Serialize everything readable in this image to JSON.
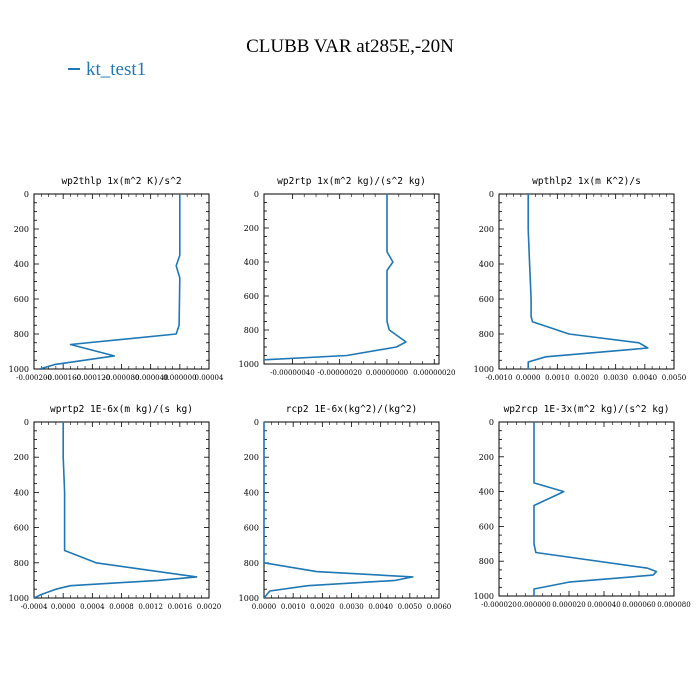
{
  "title": "CLUBB VAR at285E,-20N",
  "legend": {
    "label": "kt_test1",
    "color": "#1f77b4"
  },
  "chart_data": [
    {
      "type": "line",
      "title": "wp2thlp   1x(m^2 K)/s^2",
      "xlim": [
        -0.0002,
        4e-05
      ],
      "ylim": [
        1000,
        0
      ],
      "xticks": [
        -0.0002,
        -0.00016,
        -0.00012,
        -8e-05,
        -4e-05,
        0.0,
        4e-05
      ],
      "xtick_labels": [
        "-0.000200",
        "-0.000160",
        "-0.000120",
        "-0.000080",
        "-0.000040",
        "0.000000",
        "0.00004"
      ],
      "yticks": [
        0,
        200,
        400,
        600,
        800,
        1000
      ],
      "series": [
        {
          "color": "#1f77b4",
          "x": [
            0.0,
            0.0,
            0.0,
            -5e-06,
            0.0,
            -1e-06,
            -5e-06,
            -0.00015,
            -9e-05,
            -0.000172,
            -0.000192
          ],
          "y": [
            0,
            200,
            350,
            410,
            480,
            750,
            800,
            860,
            925,
            975,
            1000
          ]
        }
      ]
    },
    {
      "type": "line",
      "title": "wp2rtp   1x(m^2 kg)/(s^2 kg)",
      "xlim": [
        -5.2e-07,
        2.2e-07
      ],
      "ylim": [
        1000,
        0
      ],
      "xticks": [
        -4e-07,
        -2e-07,
        0.0,
        2e-07
      ],
      "xtick_labels": [
        "-0.00000040",
        "-0.00000020",
        "0.00000000",
        "0.00000020"
      ],
      "yticks": [
        0,
        200,
        400,
        600,
        800,
        1000
      ],
      "series": [
        {
          "color": "#1f77b4",
          "x": [
            0.0,
            0.0,
            0.0,
            2.5e-08,
            0.0,
            0.0,
            1e-08,
            8e-08,
            4e-08,
            -1.7e-07,
            -5.2e-07
          ],
          "y": [
            0,
            200,
            340,
            400,
            450,
            750,
            800,
            870,
            900,
            950,
            975
          ]
        }
      ]
    },
    {
      "type": "line",
      "title": "wpthlp2   1x(m K^2)/s",
      "xlim": [
        -0.001,
        0.005
      ],
      "ylim": [
        1000,
        0
      ],
      "xticks": [
        -0.001,
        0.0,
        0.001,
        0.002,
        0.003,
        0.004,
        0.005
      ],
      "xtick_labels": [
        "-0.0010",
        "0.0000",
        "0.0010",
        "0.0020",
        "0.0030",
        "0.0040",
        "0.0050"
      ],
      "yticks": [
        0,
        200,
        400,
        600,
        800,
        1000
      ],
      "series": [
        {
          "color": "#1f77b4",
          "x": [
            0.0,
            0.0,
            5e-05,
            0.0001,
            0.0001,
            0.00015,
            0.0014,
            0.0038,
            0.0041,
            0.0006,
            0.0,
            0.0
          ],
          "y": [
            0,
            200,
            400,
            600,
            700,
            730,
            800,
            850,
            880,
            930,
            960,
            1000
          ]
        }
      ]
    },
    {
      "type": "line",
      "title": "wprtp2   1E-6x(m kg)/(s kg)",
      "xlim": [
        -0.0004,
        0.002
      ],
      "ylim": [
        1000,
        0
      ],
      "xticks": [
        -0.0004,
        0.0,
        0.0004,
        0.0008,
        0.0012,
        0.0016,
        0.002
      ],
      "xtick_labels": [
        "-0.0004",
        "0.0000",
        "0.0004",
        "0.0008",
        "0.0012",
        "0.0016",
        "0.0020"
      ],
      "yticks": [
        0,
        200,
        400,
        600,
        800,
        1000
      ],
      "series": [
        {
          "color": "#1f77b4",
          "x": [
            0.0,
            0.0,
            2e-05,
            2e-05,
            2e-05,
            0.00045,
            0.00183,
            0.0013,
            0.0001,
            -0.0001,
            -0.0003,
            -0.0004
          ],
          "y": [
            0,
            200,
            400,
            600,
            730,
            800,
            880,
            900,
            930,
            950,
            980,
            1000
          ]
        }
      ]
    },
    {
      "type": "line",
      "title": "rcp2   1E-6x(kg^2)/(kg^2)",
      "xlim": [
        0.0,
        0.006
      ],
      "ylim": [
        1000,
        0
      ],
      "xticks": [
        0.0,
        0.001,
        0.002,
        0.003,
        0.004,
        0.005,
        0.006
      ],
      "xtick_labels": [
        "0.0000",
        "0.0010",
        "0.0020",
        "0.0030",
        "0.0040",
        "0.0050",
        "0.0060"
      ],
      "yticks": [
        0,
        200,
        400,
        600,
        800,
        1000
      ],
      "series": [
        {
          "color": "#1f77b4",
          "x": [
            0.0,
            0.0,
            0.0,
            0.0018,
            0.0051,
            0.0045,
            0.0015,
            0.0002,
            0.0
          ],
          "y": [
            0,
            200,
            800,
            850,
            880,
            900,
            930,
            960,
            1000
          ]
        }
      ]
    },
    {
      "type": "line",
      "title": "wp2rcp   1E-3x(m^2 kg)/(s^2 kg)",
      "xlim": [
        -2e-05,
        8e-05
      ],
      "ylim": [
        1000,
        0
      ],
      "xticks": [
        -2e-05,
        0.0,
        2e-05,
        4e-05,
        6e-05,
        8e-05
      ],
      "xtick_labels": [
        "-0.000020",
        "0.000000",
        "0.000020",
        "0.000040",
        "0.000060",
        "0.000080"
      ],
      "yticks": [
        0,
        200,
        400,
        600,
        800,
        1000
      ],
      "series": [
        {
          "color": "#1f77b4",
          "x": [
            0.0,
            0.0,
            0.0,
            1.7e-05,
            0.0,
            0.0,
            1e-06,
            6.5e-05,
            7e-05,
            6.8e-05,
            2e-05,
            0.0,
            0.0
          ],
          "y": [
            0,
            200,
            350,
            400,
            480,
            700,
            750,
            840,
            860,
            880,
            920,
            960,
            1000
          ]
        }
      ]
    }
  ]
}
